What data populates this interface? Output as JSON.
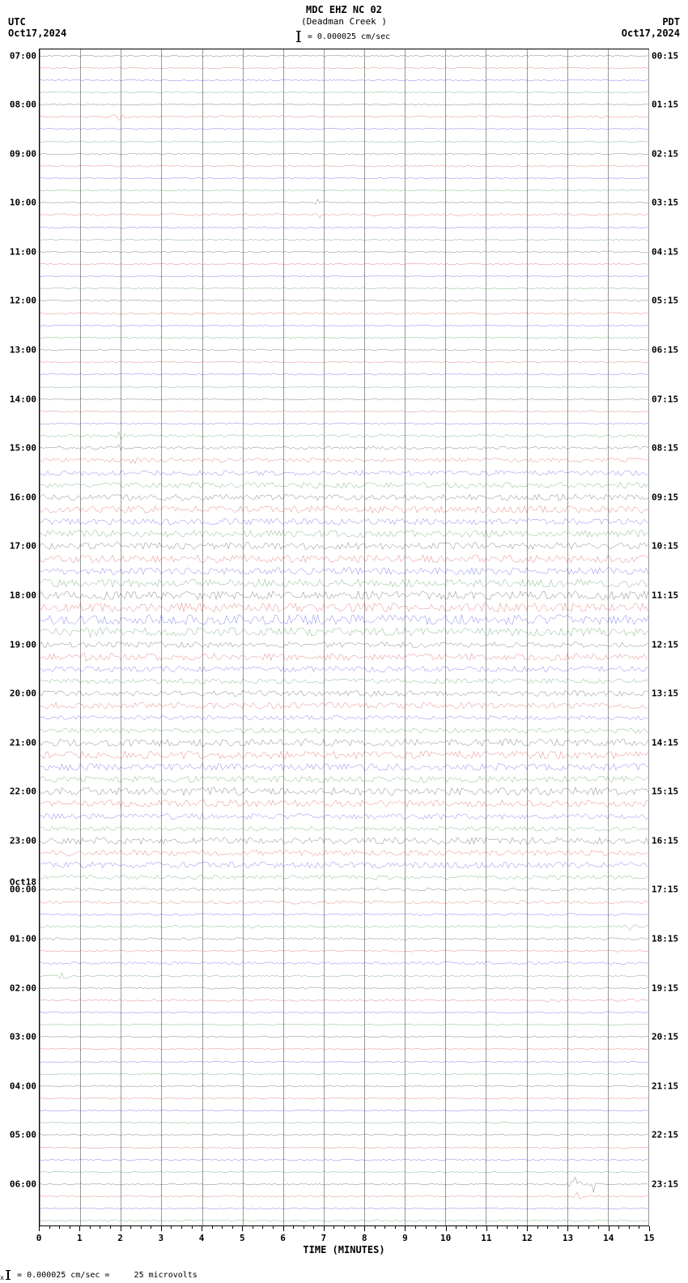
{
  "header": {
    "left_tz": "UTC",
    "left_date": "Oct17,2024",
    "right_tz": "PDT",
    "right_date": "Oct17,2024",
    "station": "MDC EHZ NC 02",
    "location": "(Deadman Creek )",
    "scale_text": "= 0.000025 cm/sec"
  },
  "plot": {
    "x_title": "TIME (MINUTES)",
    "x_min": 0,
    "x_max": 15,
    "x_ticks": [
      0,
      1,
      2,
      3,
      4,
      5,
      6,
      7,
      8,
      9,
      10,
      11,
      12,
      13,
      14,
      15
    ],
    "grid_color": "#999999",
    "background_color": "#ffffff",
    "colors": [
      "#000000",
      "#cc0000",
      "#0000dd",
      "#006600"
    ],
    "trace_line_width": 1,
    "n_hours": 24,
    "lines_per_hour": 4,
    "midnight_label": "Oct18",
    "midnight_at_hour_index": 17,
    "left_labels": [
      "07:00",
      "08:00",
      "09:00",
      "10:00",
      "11:00",
      "12:00",
      "13:00",
      "14:00",
      "15:00",
      "16:00",
      "17:00",
      "18:00",
      "19:00",
      "20:00",
      "21:00",
      "22:00",
      "23:00",
      "00:00",
      "01:00",
      "02:00",
      "03:00",
      "04:00",
      "05:00",
      "06:00"
    ],
    "right_labels": [
      "00:15",
      "01:15",
      "02:15",
      "03:15",
      "04:15",
      "05:15",
      "06:15",
      "07:15",
      "08:15",
      "09:15",
      "10:15",
      "11:15",
      "12:15",
      "13:15",
      "14:15",
      "15:15",
      "16:15",
      "17:15",
      "18:15",
      "19:15",
      "20:15",
      "21:15",
      "22:15",
      "23:15"
    ],
    "amplitude_profile": [
      0.5,
      0.5,
      0.5,
      0.5,
      0.5,
      0.7,
      0.5,
      0.5,
      0.5,
      0.6,
      0.5,
      0.5,
      0.5,
      0.8,
      0.6,
      0.5,
      0.6,
      0.5,
      0.5,
      0.5,
      0.6,
      0.7,
      0.5,
      0.6,
      0.5,
      0.5,
      0.6,
      0.5,
      0.5,
      0.6,
      0.6,
      1.0,
      1.0,
      1.5,
      1.8,
      2.0,
      2.2,
      2.5,
      2.2,
      2.5,
      2.5,
      2.8,
      2.5,
      2.8,
      3.0,
      3.2,
      3.5,
      3.0,
      2.0,
      2.5,
      2.0,
      1.8,
      2.0,
      2.2,
      1.5,
      1.8,
      2.5,
      2.8,
      2.5,
      2.2,
      2.8,
      2.5,
      2.0,
      1.5,
      2.5,
      2.0,
      2.2,
      1.5,
      1.0,
      1.2,
      0.8,
      0.8,
      0.8,
      0.7,
      1.0,
      0.6,
      0.7,
      0.8,
      0.6,
      0.5,
      0.5,
      0.5,
      0.5,
      0.5,
      0.5,
      0.5,
      0.5,
      0.5,
      0.5,
      0.5,
      0.6,
      0.5,
      0.5,
      0.6,
      0.5,
      0.6
    ],
    "spikes": [
      {
        "trace": 5,
        "x": 0.13,
        "amp": 6
      },
      {
        "trace": 12,
        "x": 0.46,
        "amp": 5
      },
      {
        "trace": 13,
        "x": 0.46,
        "amp": 4
      },
      {
        "trace": 17,
        "x": 0.64,
        "amp": 4
      },
      {
        "trace": 31,
        "x": 0.13,
        "amp": 5
      },
      {
        "trace": 32,
        "x": 0.13,
        "amp": 5
      },
      {
        "trace": 33,
        "x": 0.15,
        "amp": 4
      },
      {
        "trace": 40,
        "x": 0.13,
        "amp": 4
      },
      {
        "trace": 45,
        "x": 0.92,
        "amp": 5
      },
      {
        "trace": 47,
        "x": 0.08,
        "amp": 6
      },
      {
        "trace": 49,
        "x": 0.08,
        "amp": 5
      },
      {
        "trace": 56,
        "x": 0.43,
        "amp": 5
      },
      {
        "trace": 64,
        "x": 0.46,
        "amp": 8
      },
      {
        "trace": 71,
        "x": 0.97,
        "amp": 5
      },
      {
        "trace": 75,
        "x": 0.04,
        "amp": 6
      },
      {
        "trace": 92,
        "x": 0.88,
        "amp": 12
      },
      {
        "trace": 92,
        "x": 0.91,
        "amp": 10
      },
      {
        "trace": 93,
        "x": 0.88,
        "amp": 8
      }
    ]
  },
  "footer": {
    "text_left": "= 0.000025 cm/sec =",
    "text_right": "25 microvolts"
  }
}
